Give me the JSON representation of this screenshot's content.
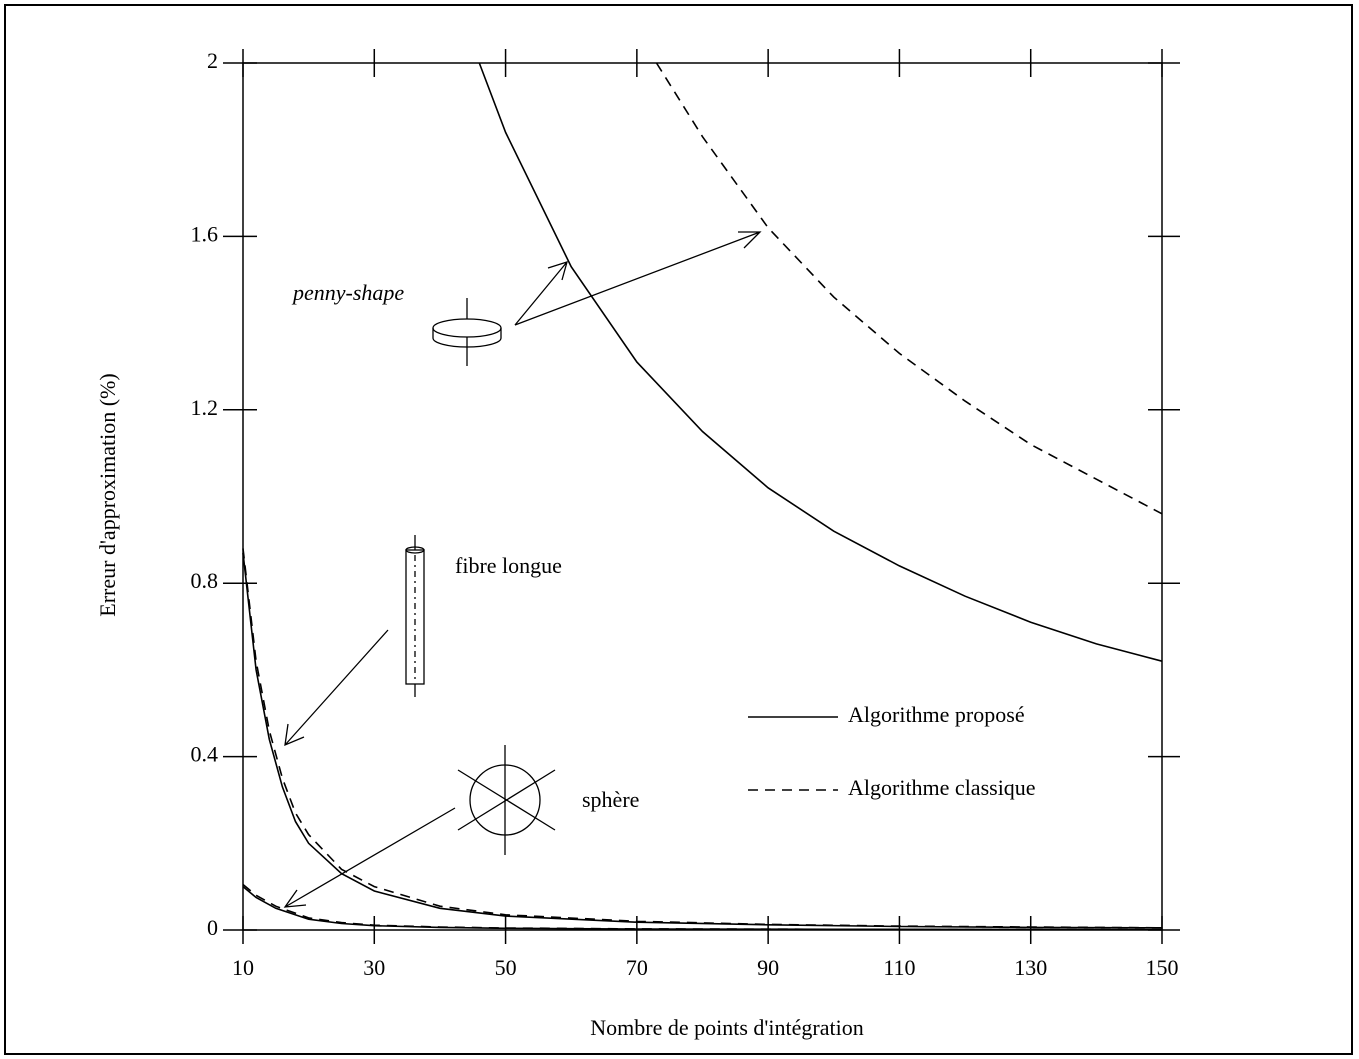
{
  "chart_data": {
    "type": "line",
    "xlabel": "Nombre de points d'intégration",
    "ylabel": "Erreur d'approximation (%)",
    "xlim": [
      10,
      150
    ],
    "xticks": [
      10,
      30,
      50,
      70,
      90,
      110,
      130,
      150
    ],
    "ylim": [
      0,
      2
    ],
    "yticks": [
      0,
      0.4,
      0.8,
      1.2,
      1.6,
      2
    ],
    "annotations": [
      "penny-shape",
      "fibre longue",
      "sphère"
    ],
    "series": [
      {
        "name": "Algorithme proposé",
        "color": "#000000",
        "dash": false,
        "x": [
          46,
          50,
          60,
          70,
          80,
          90,
          100,
          110,
          120,
          130,
          140,
          150
        ],
        "values": [
          2.0,
          1.84,
          1.53,
          1.31,
          1.15,
          1.02,
          0.92,
          0.84,
          0.77,
          0.71,
          0.66,
          0.62
        ]
      },
      {
        "name": "Algorithme classique",
        "color": "#000000",
        "dash": true,
        "x": [
          73,
          80,
          90,
          100,
          110,
          120,
          130,
          140,
          150
        ],
        "values": [
          2.0,
          1.83,
          1.62,
          1.46,
          1.33,
          1.22,
          1.12,
          1.04,
          0.96
        ]
      },
      {
        "name": "Algorithme proposé",
        "color": "#000000",
        "dash": false,
        "x": [
          10,
          12,
          14,
          16,
          18,
          20,
          25,
          30,
          40,
          50,
          70,
          90,
          110,
          130,
          150
        ],
        "values": [
          0.87,
          0.6,
          0.44,
          0.33,
          0.25,
          0.2,
          0.13,
          0.09,
          0.05,
          0.032,
          0.018,
          0.012,
          0.008,
          0.006,
          0.005
        ]
      },
      {
        "name": "Algorithme classique",
        "color": "#000000",
        "dash": true,
        "x": [
          10,
          12,
          14,
          16,
          18,
          20,
          25,
          30,
          40,
          50,
          70,
          90,
          110,
          130,
          150
        ],
        "values": [
          0.88,
          0.62,
          0.46,
          0.35,
          0.27,
          0.22,
          0.14,
          0.1,
          0.055,
          0.035,
          0.02,
          0.013,
          0.009,
          0.007,
          0.005
        ]
      },
      {
        "name": "Algorithme proposé",
        "color": "#000000",
        "dash": false,
        "x": [
          10,
          12,
          15,
          20,
          25,
          30,
          40,
          50,
          70,
          100,
          150
        ],
        "values": [
          0.1,
          0.075,
          0.05,
          0.025,
          0.015,
          0.01,
          0.006,
          0.004,
          0.002,
          0.0015,
          0.001
        ]
      },
      {
        "name": "Algorithme classique",
        "color": "#000000",
        "dash": true,
        "x": [
          10,
          12,
          15,
          20,
          25,
          30,
          40,
          50,
          70,
          100,
          150
        ],
        "values": [
          0.105,
          0.08,
          0.055,
          0.028,
          0.017,
          0.011,
          0.007,
          0.0045,
          0.0025,
          0.0017,
          0.001
        ]
      }
    ]
  }
}
